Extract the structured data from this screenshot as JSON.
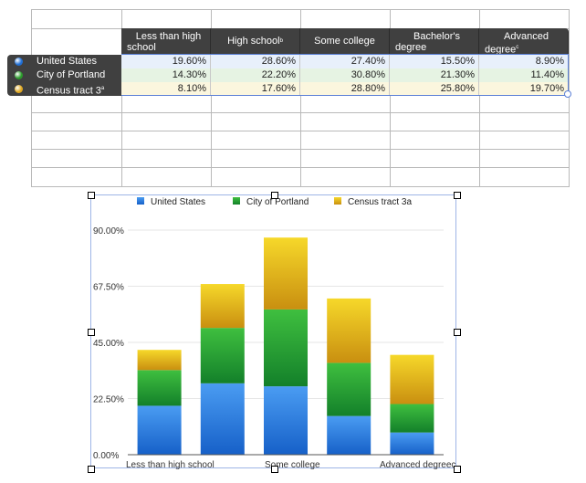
{
  "table": {
    "headers": [
      {
        "line1": "Less than high",
        "line2": "school"
      },
      {
        "line1": "High school",
        "line2": "",
        "note": "b"
      },
      {
        "line1": "Some college",
        "line2": ""
      },
      {
        "line1": "Bachelor's",
        "line2": "degree"
      },
      {
        "line1": "Advanced",
        "line2": "degree",
        "note": "c"
      }
    ],
    "rows": [
      {
        "label": "United States",
        "note": "",
        "color": "#1f6fd6",
        "values": [
          "19.60%",
          "28.60%",
          "27.40%",
          "15.50%",
          "8.90%"
        ]
      },
      {
        "label": "City of Portland",
        "note": "",
        "color": "#2a9a2a",
        "values": [
          "14.30%",
          "22.20%",
          "30.80%",
          "21.30%",
          "11.40%"
        ]
      },
      {
        "label": "Census tract 3",
        "note": "a",
        "color": "#e0a820",
        "values": [
          "8.10%",
          "17.60%",
          "28.80%",
          "25.80%",
          "19.70%"
        ]
      }
    ]
  },
  "chart_data": {
    "type": "bar",
    "stacked": true,
    "categories": [
      "Less than high school",
      "High school",
      "Some college",
      "Bachelor's degree",
      "Advanced degree"
    ],
    "visible_x_ticks": [
      "Less than high school",
      "Some college",
      "Advanced degreec"
    ],
    "series": [
      {
        "name": "United States",
        "values": [
          19.6,
          28.6,
          27.4,
          15.5,
          8.9
        ],
        "color": "#1f6fd6"
      },
      {
        "name": "City of Portland",
        "values": [
          14.3,
          22.2,
          30.8,
          21.3,
          11.4
        ],
        "color": "#2a9a2a"
      },
      {
        "name": "Census tract 3a",
        "values": [
          8.1,
          17.6,
          28.8,
          25.8,
          19.7
        ],
        "color": "#e0a820"
      }
    ],
    "y_ticks": [
      "0.00%",
      "22.50%",
      "45.00%",
      "67.50%",
      "90.00%"
    ],
    "ylim": [
      0,
      90
    ],
    "legend_position": "top",
    "grid": true
  }
}
